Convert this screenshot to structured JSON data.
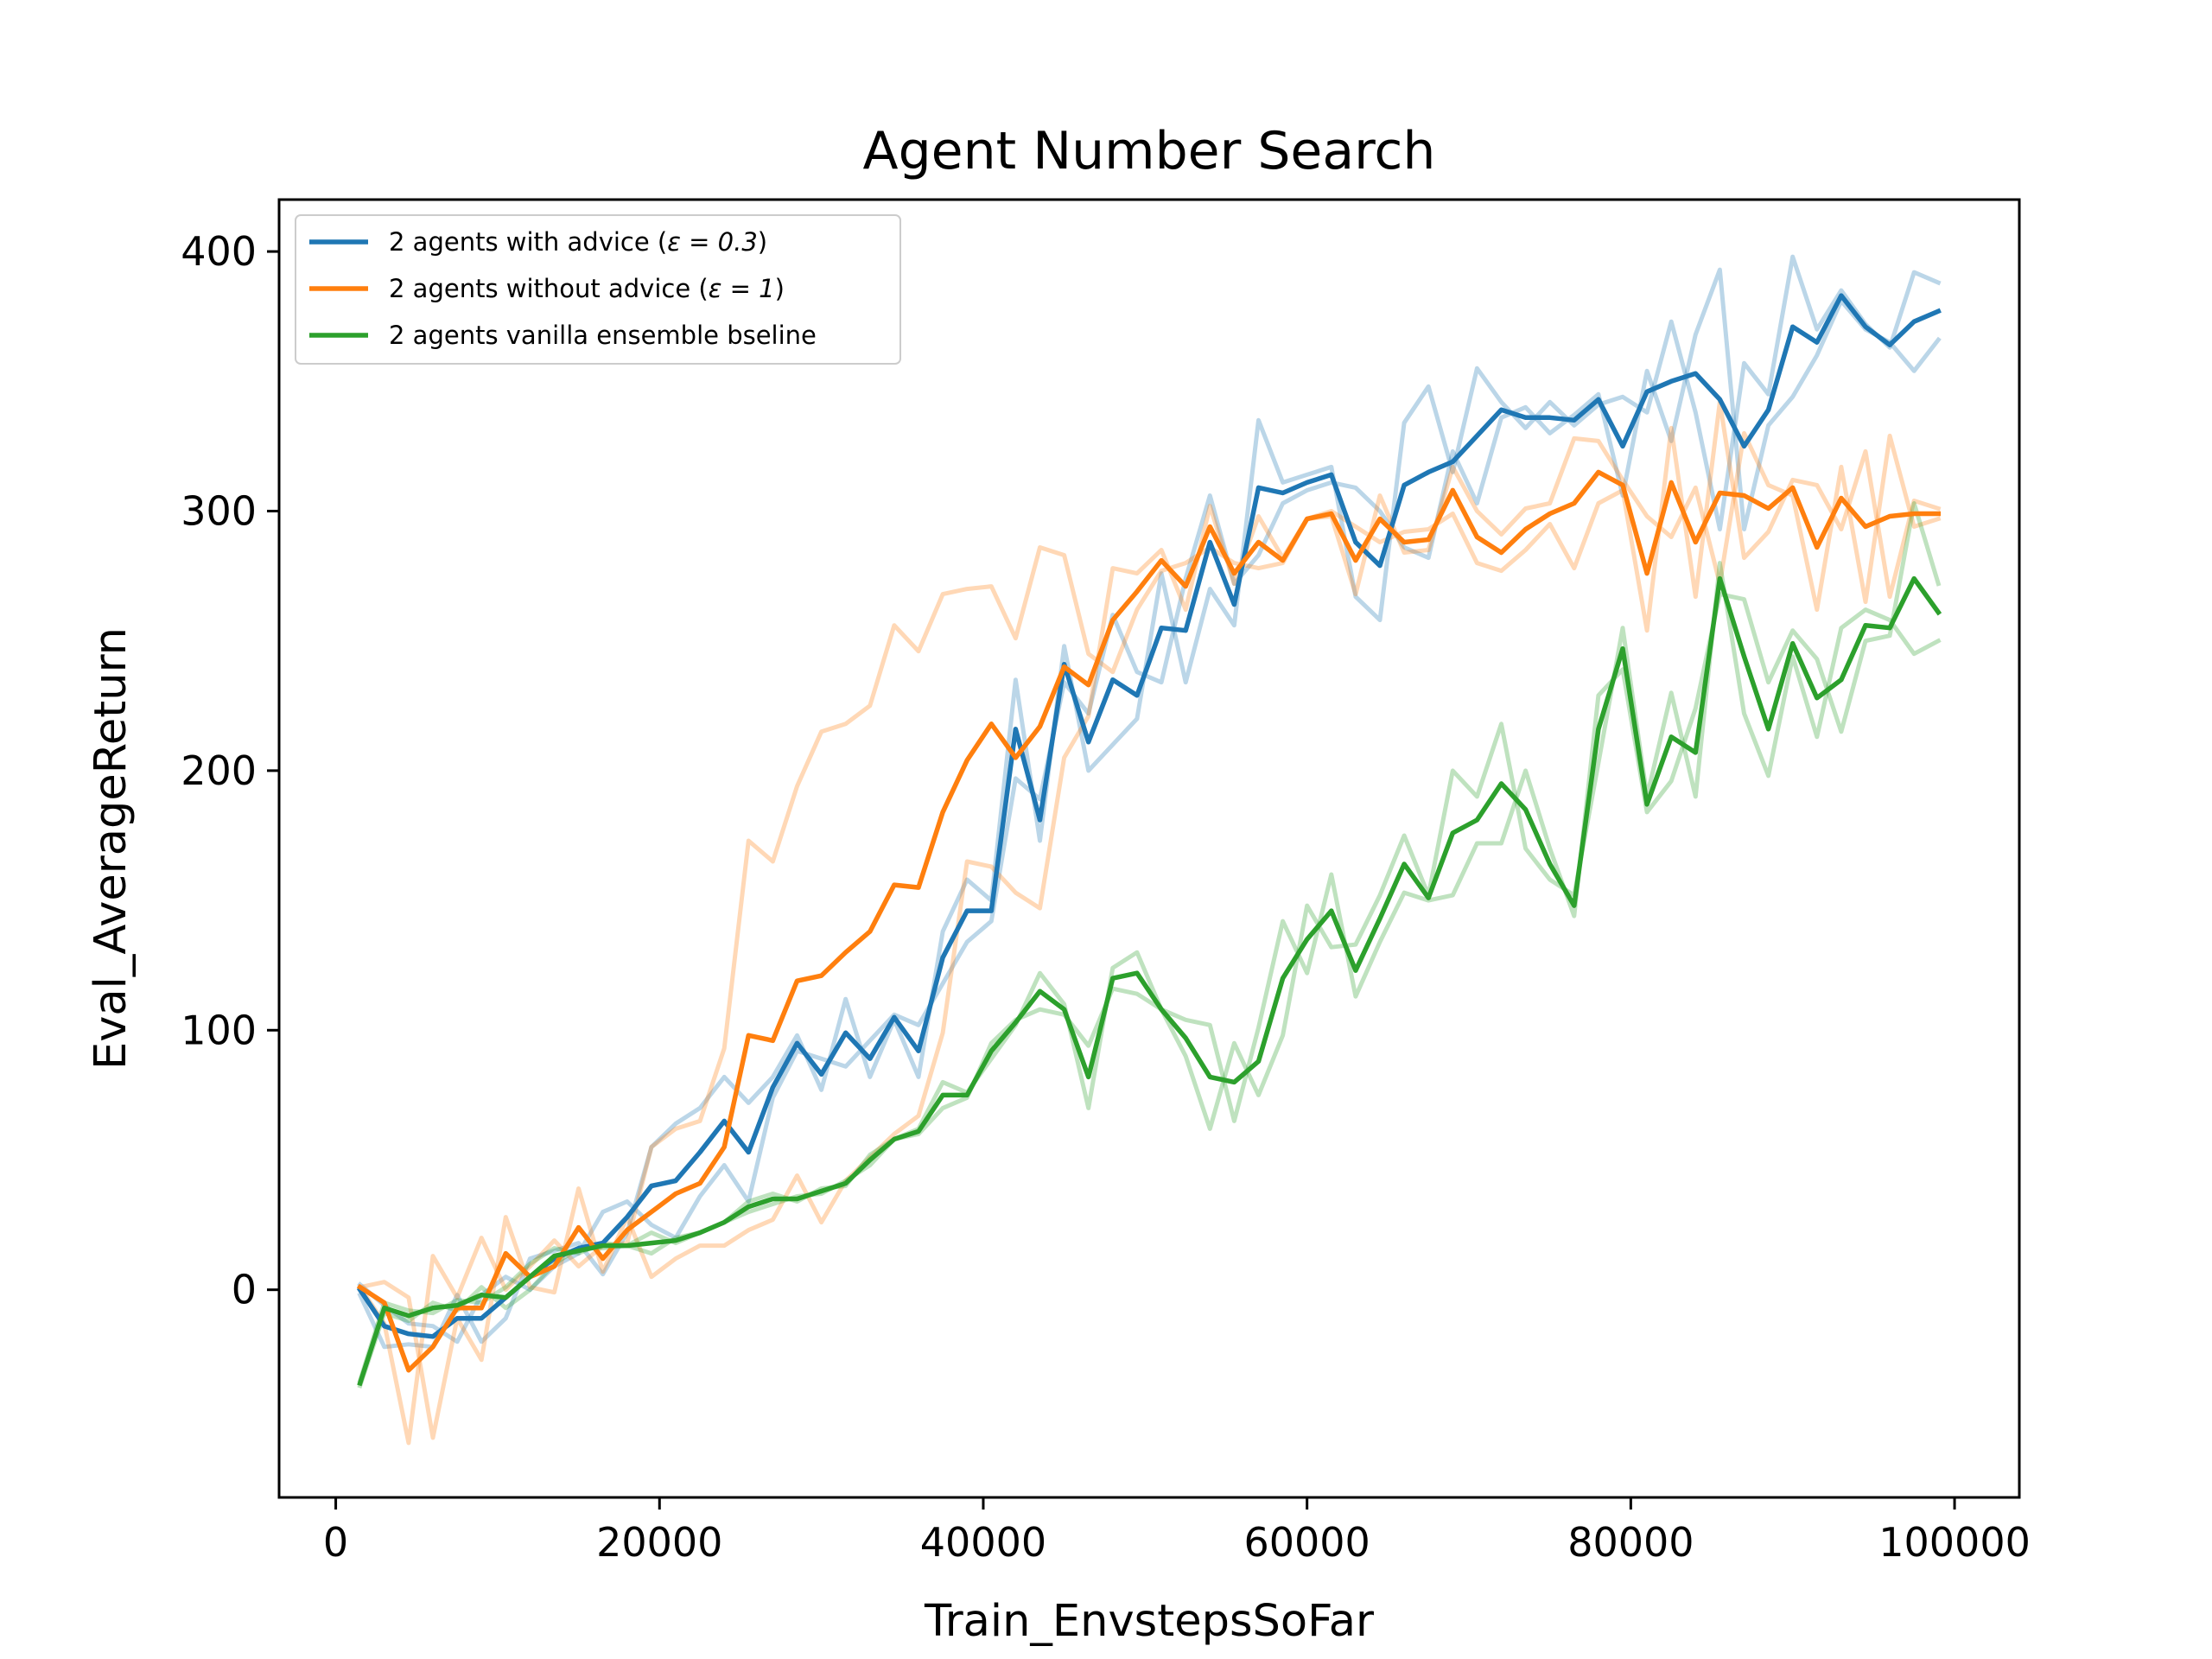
{
  "chart_data": {
    "type": "line",
    "title": "Agent Number Search",
    "xlabel": "Train_EnvstepsSoFar",
    "ylabel": "Eval_AverageReturn",
    "xlim": [
      -3500,
      104000
    ],
    "ylim": [
      -80,
      420
    ],
    "xticks": [
      0,
      20000,
      40000,
      60000,
      80000,
      100000
    ],
    "xtick_labels": [
      "0",
      "20000",
      "40000",
      "60000",
      "80000",
      "100000"
    ],
    "yticks": [
      0,
      100,
      200,
      300,
      400
    ],
    "ytick_labels": [
      "0",
      "100",
      "200",
      "300",
      "400"
    ],
    "grid": false,
    "legend_position": "upper-left",
    "x": [
      1500,
      3000,
      4500,
      6000,
      7500,
      9000,
      10500,
      12000,
      13500,
      15000,
      16500,
      18000,
      19500,
      21000,
      22500,
      24000,
      25500,
      27000,
      28500,
      30000,
      31500,
      33000,
      34500,
      36000,
      37500,
      39000,
      40500,
      42000,
      43500,
      45000,
      46500,
      48000,
      49500,
      51000,
      52500,
      54000,
      55500,
      57000,
      58500,
      60000,
      61500,
      63000,
      64500,
      66000,
      67500,
      69000,
      70500,
      72000,
      73500,
      75000,
      76500,
      78000,
      79500,
      81000,
      82500,
      84000,
      85500,
      87000,
      88500,
      90000,
      91500,
      93000,
      94500,
      96000,
      97500,
      99000
    ],
    "series": [
      {
        "name": "2 agents with advice (ε = 0.3)",
        "color": "#1f77b4",
        "values": [
          0,
          -14,
          -17,
          -18,
          -11,
          -11,
          -3,
          5,
          12,
          16,
          18,
          28,
          40,
          42,
          53,
          65,
          53,
          78,
          95,
          83,
          99,
          89,
          105,
          92,
          128,
          146,
          146,
          216,
          181,
          241,
          211,
          235,
          229,
          255,
          254,
          288,
          264,
          309,
          307,
          311,
          314,
          288,
          279,
          310,
          315,
          319,
          329,
          339,
          336,
          336,
          335,
          343,
          325,
          346,
          350,
          353,
          343,
          325,
          339,
          371,
          365,
          383,
          371,
          364,
          373,
          377
        ]
      },
      {
        "name": "2 agents without advice (ε = 1)",
        "color": "#ff7f0e",
        "values": [
          1,
          -5,
          -31,
          -22,
          -7,
          -7,
          14,
          5,
          9,
          24,
          12,
          23,
          30,
          37,
          41,
          55,
          98,
          96,
          119,
          121,
          130,
          138,
          156,
          155,
          184,
          204,
          218,
          205,
          217,
          240,
          233,
          258,
          269,
          281,
          271,
          294,
          276,
          288,
          281,
          297,
          299,
          281,
          297,
          288,
          289,
          308,
          290,
          284,
          293,
          299,
          303,
          315,
          310,
          276,
          311,
          288,
          307,
          306,
          301,
          309,
          286,
          305,
          294,
          298,
          299,
          299
        ]
      },
      {
        "name": "2 agents vanilla ensemble bseline",
        "color": "#2ca02c",
        "values": [
          -36,
          -7,
          -10,
          -7,
          -6,
          -2,
          -3,
          5,
          13,
          15,
          17,
          17,
          18,
          19,
          22,
          26,
          32,
          35,
          35,
          38,
          41,
          50,
          58,
          61,
          75,
          75,
          92,
          103,
          115,
          108,
          82,
          120,
          122,
          108,
          97,
          82,
          80,
          88,
          120,
          135,
          146,
          123,
          143,
          164,
          151,
          176,
          181,
          195,
          185,
          164,
          148,
          216,
          247,
          187,
          213,
          207,
          274,
          244,
          216,
          249,
          228,
          235,
          256,
          255,
          274,
          261
        ]
      },
      {
        "name": "",
        "color": "#1f77b4",
        "opacity": 0.3,
        "values": [
          -2,
          -22,
          -21,
          -22,
          -2,
          -20,
          -11,
          12,
          15,
          18,
          6,
          22,
          55,
          64,
          70,
          82,
          72,
          82,
          98,
          77,
          112,
          82,
          104,
          82,
          138,
          158,
          150,
          235,
          173,
          248,
          200,
          210,
          220,
          276,
          234,
          270,
          256,
          335,
          311,
          314,
          317,
          267,
          258,
          334,
          348,
          315,
          355,
          342,
          332,
          342,
          333,
          341,
          344,
          338,
          373,
          338,
          293,
          357,
          345,
          398,
          370,
          385,
          372,
          363,
          392,
          388
        ]
      },
      {
        "name": "",
        "color": "#1f77b4",
        "opacity": 0.3,
        "values": [
          2,
          -6,
          -13,
          -14,
          -20,
          -2,
          5,
          0,
          9,
          14,
          30,
          34,
          25,
          20,
          36,
          48,
          34,
          74,
          92,
          89,
          86,
          96,
          106,
          102,
          118,
          134,
          142,
          197,
          189,
          234,
          222,
          260,
          238,
          234,
          274,
          306,
          272,
          283,
          303,
          308,
          311,
          309,
          300,
          286,
          282,
          323,
          303,
          336,
          340,
          330,
          337,
          345,
          306,
          354,
          327,
          368,
          393,
          293,
          333,
          344,
          360,
          381,
          370,
          365,
          354,
          366
        ]
      },
      {
        "name": "",
        "color": "#ff7f0e",
        "opacity": 0.3,
        "values": [
          1,
          3,
          -3,
          -57,
          -11,
          -27,
          28,
          1,
          -1,
          39,
          7,
          28,
          5,
          12,
          17,
          17,
          23,
          27,
          44,
          26,
          42,
          51,
          60,
          67,
          99,
          165,
          163,
          153,
          147,
          205,
          221,
          278,
          276,
          285,
          262,
          302,
          272,
          298,
          282,
          297,
          300,
          294,
          288,
          292,
          293,
          299,
          280,
          277,
          285,
          295,
          278,
          303,
          308,
          254,
          332,
          267,
          342,
          282,
          292,
          312,
          310,
          293,
          323,
          267,
          304,
          301
        ]
      },
      {
        "name": "",
        "color": "#ff7f0e",
        "opacity": 0.3,
        "values": [
          1,
          -13,
          -59,
          13,
          -3,
          20,
          0,
          9,
          19,
          9,
          17,
          18,
          55,
          62,
          65,
          93,
          173,
          165,
          194,
          215,
          218,
          225,
          256,
          246,
          268,
          270,
          271,
          251,
          286,
          283,
          245,
          238,
          262,
          277,
          280,
          286,
          280,
          278,
          280,
          297,
          298,
          268,
          306,
          284,
          285,
          317,
          300,
          291,
          301,
          303,
          328,
          327,
          312,
          298,
          290,
          309,
          272,
          330,
          310,
          306,
          262,
          317,
          265,
          329,
          294,
          297
        ]
      },
      {
        "name": "",
        "color": "#2ca02c",
        "opacity": 0.3,
        "values": [
          -35,
          -5,
          -8,
          -9,
          -4,
          -5,
          1,
          10,
          16,
          14,
          18,
          17,
          22,
          18,
          22,
          26,
          30,
          33,
          36,
          37,
          42,
          48,
          58,
          62,
          80,
          76,
          89,
          102,
          122,
          110,
          70,
          124,
          130,
          108,
          90,
          62,
          95,
          75,
          98,
          148,
          132,
          133,
          152,
          175,
          152,
          200,
          190,
          218,
          170,
          158,
          152,
          203,
          255,
          190,
          230,
          190,
          280,
          222,
          198,
          244,
          213,
          255,
          262,
          258,
          245,
          250
        ]
      },
      {
        "name": "",
        "color": "#2ca02c",
        "opacity": 0.3,
        "values": [
          -37,
          -9,
          -12,
          -5,
          -8,
          1,
          -7,
          0,
          10,
          16,
          16,
          17,
          14,
          20,
          22,
          26,
          34,
          37,
          34,
          39,
          40,
          52,
          58,
          60,
          70,
          74,
          95,
          104,
          108,
          106,
          94,
          116,
          114,
          108,
          104,
          102,
          65,
          101,
          142,
          122,
          160,
          113,
          134,
          153,
          150,
          152,
          172,
          172,
          200,
          170,
          144,
          229,
          239,
          184,
          196,
          224,
          268,
          266,
          234,
          254,
          243,
          215,
          250,
          252,
          303,
          272
        ]
      }
    ]
  },
  "legend": {
    "items": [
      {
        "label": "2 agents with advice (",
        "math": "ε = 0.3",
        "suffix": ")",
        "color": "#1f77b4"
      },
      {
        "label": "2 agents without advice (",
        "math": "ε = 1",
        "suffix": ")",
        "color": "#ff7f0e"
      },
      {
        "label": "2 agents vanilla ensemble bseline",
        "math": "",
        "suffix": "",
        "color": "#2ca02c"
      }
    ]
  }
}
